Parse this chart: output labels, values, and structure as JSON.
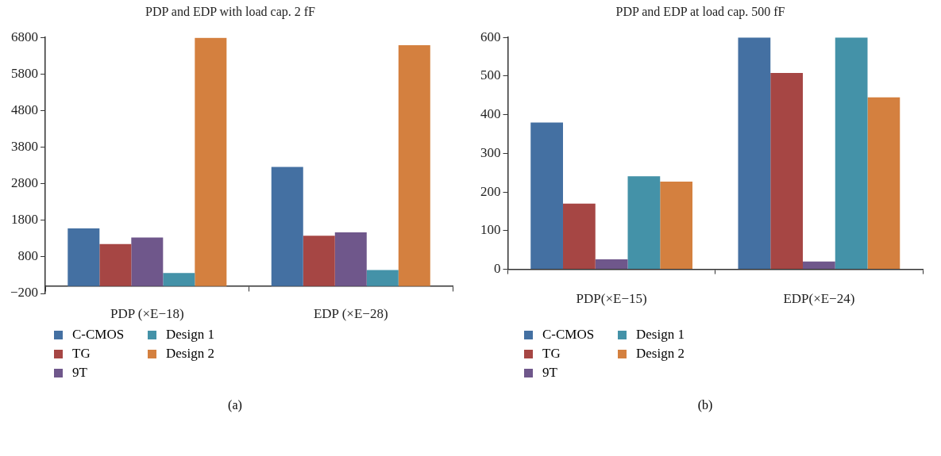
{
  "chart_data": [
    {
      "type": "bar",
      "title": "PDP and EDP with load cap. 2 fF",
      "categories": [
        "PDP (×E−18)",
        "EDP (×E−28)"
      ],
      "series": [
        {
          "name": "C-CMOS",
          "color": "#4470a2",
          "values": [
            1580,
            3260
          ]
        },
        {
          "name": "TG",
          "color": "#a64644",
          "values": [
            1150,
            1380
          ]
        },
        {
          "name": "9T",
          "color": "#6f578b",
          "values": [
            1330,
            1470
          ]
        },
        {
          "name": "Design 1",
          "color": "#4492a8",
          "values": [
            360,
            440
          ]
        },
        {
          "name": "Design 2",
          "color": "#d4803f",
          "values": [
            6790,
            6590
          ]
        }
      ],
      "ylim": [
        -200,
        6800
      ],
      "yticks": [
        -200,
        800,
        1800,
        2800,
        3800,
        4800,
        5800,
        6800
      ],
      "grid": false,
      "legend": "bottom",
      "annotations": [
        "(a)"
      ]
    },
    {
      "type": "bar",
      "title": "PDP and EDP at load cap. 500 fF",
      "categories": [
        "PDP(×E−15)",
        "EDP(×E−24)"
      ],
      "series": [
        {
          "name": "C-CMOS",
          "color": "#4470a2",
          "values": [
            380,
            600
          ]
        },
        {
          "name": "TG",
          "color": "#a64644",
          "values": [
            170,
            508
          ]
        },
        {
          "name": "9T",
          "color": "#6f578b",
          "values": [
            26,
            20
          ]
        },
        {
          "name": "Design 1",
          "color": "#4492a8",
          "values": [
            241,
            600
          ]
        },
        {
          "name": "Design 2",
          "color": "#d4803f",
          "values": [
            227,
            445
          ]
        }
      ],
      "ylim": [
        0,
        600
      ],
      "yticks": [
        0,
        100,
        200,
        300,
        400,
        500,
        600
      ],
      "grid": false,
      "legend": "bottom",
      "annotations": [
        "(b)"
      ]
    }
  ]
}
